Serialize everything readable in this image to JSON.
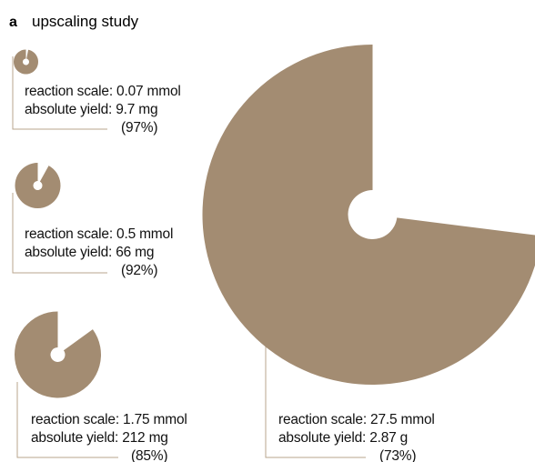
{
  "chart_data": {
    "type": "pie",
    "panel_label": "a",
    "title": "upscaling study",
    "color": "#a38c72",
    "leader_color": "#b9a68e",
    "series": [
      {
        "scale_line": "reaction scale: 0.07 mmol",
        "yield_line": "absolute yield: 9.7 mg",
        "percent_label": "(97%)",
        "scale_mmol": 0.07,
        "yield_percent": 97
      },
      {
        "scale_line": "reaction scale: 0.5 mmol",
        "yield_line": "absolute yield: 66 mg",
        "percent_label": "(92%)",
        "scale_mmol": 0.5,
        "yield_percent": 92
      },
      {
        "scale_line": "reaction scale: 1.75 mmol",
        "yield_line": "absolute yield: 212 mg",
        "percent_label": "(85%)",
        "scale_mmol": 1.75,
        "yield_percent": 85
      },
      {
        "scale_line": "reaction scale: 27.5 mmol",
        "yield_line": "absolute yield: 2.87 g",
        "percent_label": "(73%)",
        "scale_mmol": 27.5,
        "yield_percent": 73
      }
    ]
  }
}
